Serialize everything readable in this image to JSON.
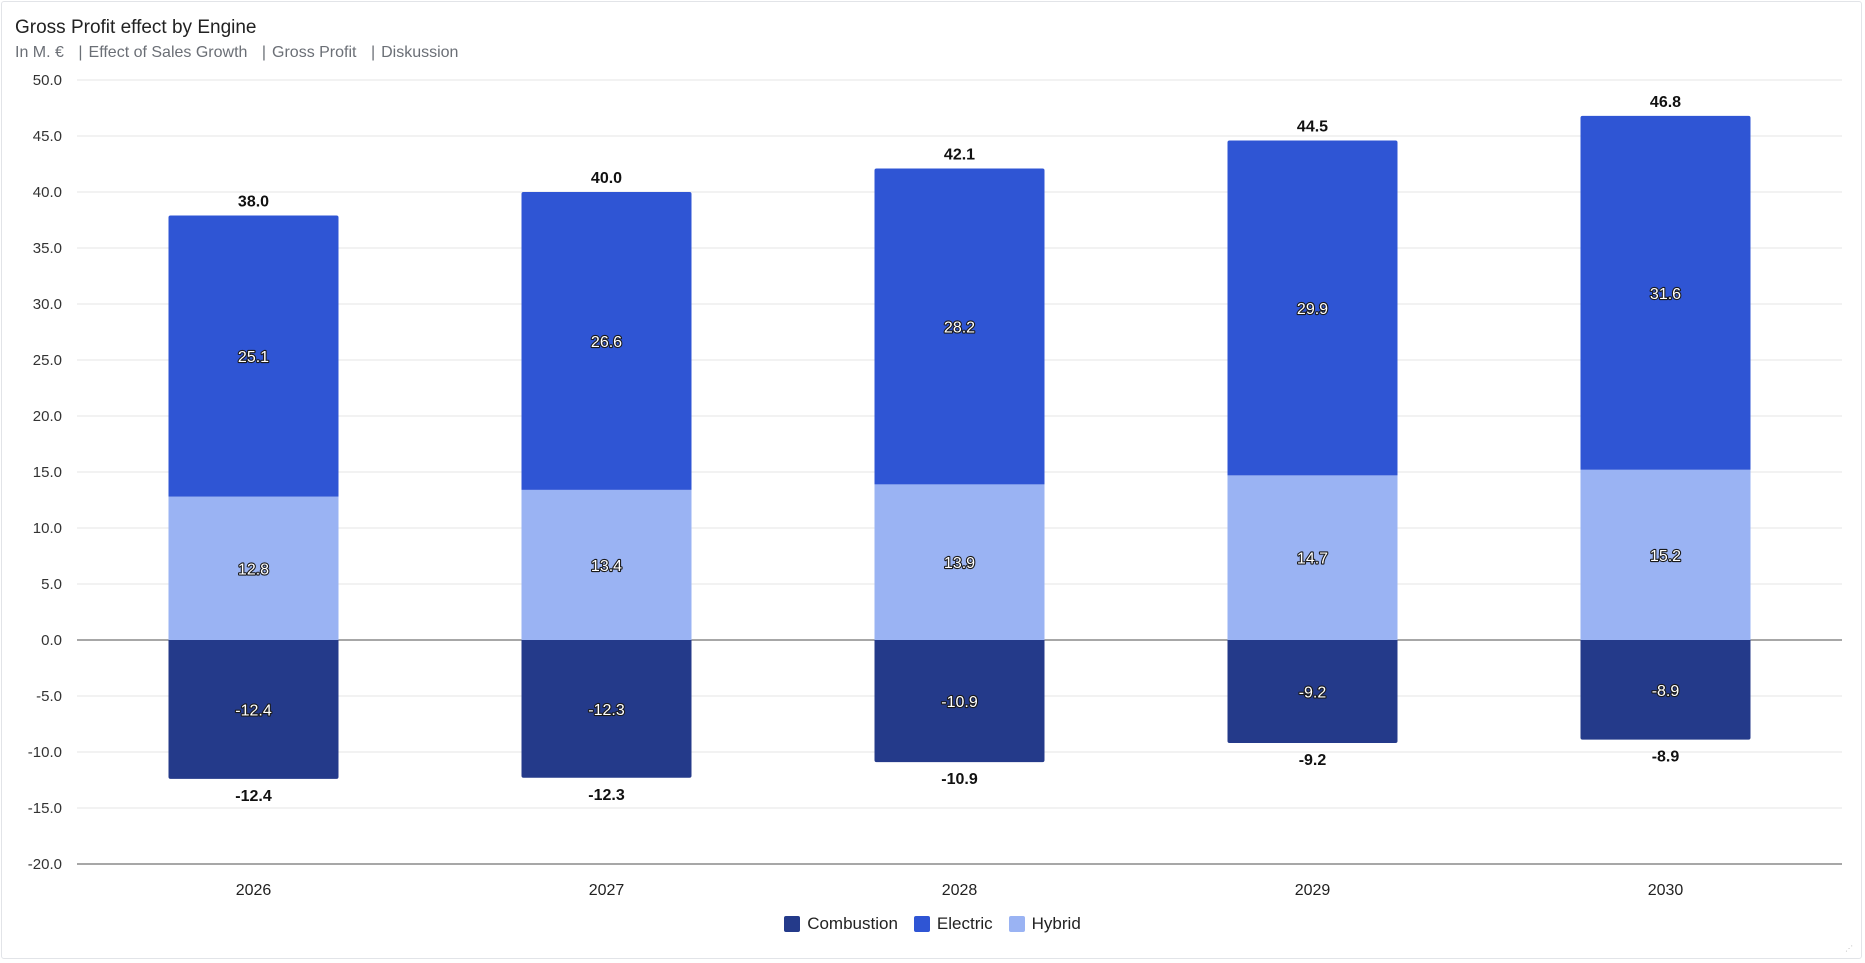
{
  "header": {
    "title": "Gross Profit effect by Engine",
    "unit": "In M. €",
    "filters": [
      "Effect of Sales Growth",
      "Gross Profit",
      "Diskussion"
    ]
  },
  "chart_data": {
    "type": "bar",
    "stacked": true,
    "title": "Gross Profit effect by Engine",
    "subtitle": "In M. €",
    "categories": [
      "2026",
      "2027",
      "2028",
      "2029",
      "2030"
    ],
    "series": [
      {
        "name": "Combustion",
        "color": "#243a8a",
        "values": [
          -12.4,
          -12.3,
          -10.9,
          -9.2,
          -8.9
        ]
      },
      {
        "name": "Electric",
        "color": "#2f55d4",
        "values": [
          25.1,
          26.6,
          28.2,
          29.9,
          31.6
        ]
      },
      {
        "name": "Hybrid",
        "color": "#9ab3f3",
        "values": [
          12.8,
          13.4,
          13.9,
          14.7,
          15.2
        ]
      }
    ],
    "positive_totals": [
      "38.0",
      "40.0",
      "42.1",
      "44.5",
      "46.8"
    ],
    "negative_totals": [
      "-12.4",
      "-12.3",
      "-10.9",
      "-9.2",
      "-8.9"
    ],
    "ylim": [
      -20,
      50
    ],
    "yticks": [
      "50.0",
      "45.0",
      "40.0",
      "35.0",
      "30.0",
      "25.0",
      "20.0",
      "15.0",
      "10.0",
      "5.0",
      "0.0",
      "-5.0",
      "-10.0",
      "-15.0",
      "-20.0"
    ],
    "grid": true,
    "legend_position": "bottom-center"
  }
}
